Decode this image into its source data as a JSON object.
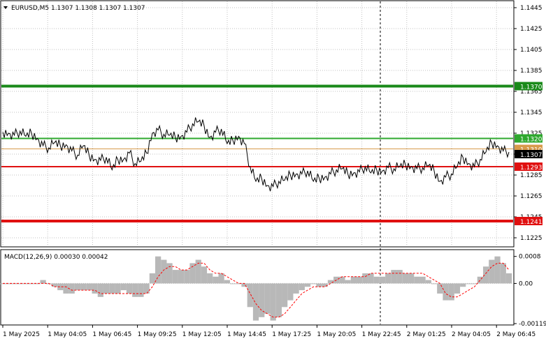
{
  "header": {
    "symbol_info": "EURUSD,M5  1.1307 1.1308 1.1307 1.1307"
  },
  "macd_header": {
    "label": "MACD(12,26,9) 0.00030 0.00042"
  },
  "colors": {
    "resistance_strong": "#1a8a1a",
    "resistance": "#2ea82e",
    "support": "#e01010",
    "current_line": "#d89a4a",
    "price_tag": "#000000",
    "histogram": "#b8b8b8",
    "signal": "#ff0000",
    "grid": "#c0c0c0",
    "frame": "#000000"
  },
  "chart_data": {
    "type": "line",
    "symbol": "EURUSD",
    "timeframe": "M5",
    "price_axis": {
      "ticks": [
        "1.1445",
        "1.1425",
        "1.1405",
        "1.1385",
        "1.1365",
        "1.1345",
        "1.1325",
        "1.1305",
        "1.1285",
        "1.1265",
        "1.1245",
        "1.1225"
      ],
      "range": [
        1.1217,
        1.1451
      ]
    },
    "time_axis": {
      "ticks": [
        "1 May 2025",
        "1 May 04:05",
        "1 May 06:45",
        "1 May 09:25",
        "1 May 12:05",
        "1 May 14:45",
        "1 May 17:25",
        "1 May 20:05",
        "1 May 22:45",
        "2 May 01:25",
        "2 May 04:05",
        "2 May 06:45"
      ]
    },
    "levels": [
      {
        "value": 1.137,
        "label": "1.1370",
        "role": "resistance_strong"
      },
      {
        "value": 1.132,
        "label": "1.1320",
        "role": "resistance"
      },
      {
        "value": 1.131,
        "label": "1.1310",
        "role": "current_line"
      },
      {
        "value": 1.1293,
        "label": "1.1293",
        "role": "support"
      },
      {
        "value": 1.1241,
        "label": "1.1241",
        "role": "support"
      }
    ],
    "current_price": {
      "value": 1.1307,
      "label": "1.1307"
    },
    "price_close": [
      1.1326,
      1.1325,
      1.1323,
      1.1327,
      1.1322,
      1.1325,
      1.132,
      1.1313,
      1.1311,
      1.1316,
      1.1313,
      1.1314,
      1.1308,
      1.1304,
      1.1313,
      1.1304,
      1.13,
      1.1299,
      1.1302,
      1.129,
      1.13,
      1.13,
      1.1306,
      1.1296,
      1.1298,
      1.1306,
      1.1325,
      1.1328,
      1.1324,
      1.1323,
      1.1321,
      1.1322,
      1.1326,
      1.1334,
      1.1336,
      1.1332,
      1.1321,
      1.1326,
      1.1329,
      1.1315,
      1.1318,
      1.1322,
      1.1315,
      1.1293,
      1.1279,
      1.1282,
      1.1275,
      1.1274,
      1.1279,
      1.128,
      1.1285,
      1.1286,
      1.1286,
      1.1289,
      1.1279,
      1.1282,
      1.1283,
      1.1286,
      1.129,
      1.1291,
      1.1286,
      1.1287,
      1.1288,
      1.1293,
      1.1287,
      1.129,
      1.1289,
      1.1292,
      1.1291,
      1.1293,
      1.1295,
      1.1293,
      1.1291,
      1.1292,
      1.1294,
      1.1289,
      1.1279,
      1.1283,
      1.1286,
      1.1293,
      1.1302,
      1.1296,
      1.1293,
      1.13,
      1.1307,
      1.1316,
      1.1313,
      1.1308,
      1.1307
    ],
    "macd_panel": {
      "name": "MACD(12,26,9)",
      "macd_value": 0.0003,
      "signal_value": 0.00042,
      "axis_ticks": [
        "0.0008",
        "0.00",
        "-0.00119"
      ],
      "range": [
        -0.00121,
        0.00098
      ],
      "histogram": [
        0.0,
        0.0,
        0.0,
        0.0,
        0.0,
        0.0,
        0.0,
        0.0001,
        0.0,
        -0.0001,
        -0.0002,
        -0.0003,
        -0.0003,
        -0.0002,
        -0.0002,
        -0.0002,
        -0.0003,
        -0.0004,
        -0.0003,
        -0.0003,
        -0.0003,
        -0.0002,
        -0.0003,
        -0.0004,
        -0.0004,
        -0.0003,
        0.0003,
        0.0008,
        0.0007,
        0.0006,
        0.0004,
        0.0004,
        0.0004,
        0.0006,
        0.0007,
        0.0005,
        0.0003,
        0.0002,
        0.0003,
        0.0001,
        0.0,
        0.0,
        -0.0001,
        -0.0007,
        -0.0011,
        -0.001,
        -0.0009,
        -0.0011,
        -0.001,
        -0.0007,
        -0.0005,
        -0.0003,
        -0.0002,
        -0.0001,
        0.0,
        -0.0001,
        -0.0001,
        0.0001,
        0.0002,
        0.0002,
        0.0001,
        0.0002,
        0.0002,
        0.0003,
        0.0003,
        0.0002,
        0.0002,
        0.0003,
        0.0004,
        0.0004,
        0.0003,
        0.0003,
        0.0002,
        0.0002,
        0.0001,
        0.0,
        -0.0003,
        -0.0005,
        -0.0005,
        -0.0003,
        -0.0001,
        0.0,
        0.0,
        0.0002,
        0.0005,
        0.0007,
        0.0008,
        0.0006,
        0.0003
      ],
      "signal": [
        0.0,
        0.0,
        0.0,
        0.0,
        0.0,
        0.0,
        0.0,
        0.0,
        0.0,
        -0.0001,
        -0.0001,
        -0.0001,
        -0.0002,
        -0.0002,
        -0.0002,
        -0.0002,
        -0.0002,
        -0.0003,
        -0.0003,
        -0.0003,
        -0.0003,
        -0.0003,
        -0.0003,
        -0.0003,
        -0.0003,
        -0.0003,
        -0.0001,
        0.0002,
        0.0004,
        0.0005,
        0.0005,
        0.0004,
        0.0004,
        0.0005,
        0.0006,
        0.0006,
        0.0004,
        0.0003,
        0.0003,
        0.0002,
        0.0001,
        0.0,
        0.0,
        -0.0003,
        -0.0006,
        -0.0008,
        -0.0009,
        -0.001,
        -0.001,
        -0.0009,
        -0.0007,
        -0.0005,
        -0.0003,
        -0.0002,
        -0.0001,
        -0.0001,
        -0.0001,
        0.0,
        0.0001,
        0.0002,
        0.0002,
        0.0002,
        0.0002,
        0.0002,
        0.0003,
        0.0003,
        0.0003,
        0.0003,
        0.0003,
        0.0003,
        0.0003,
        0.0003,
        0.0003,
        0.0003,
        0.0002,
        0.0001,
        0.0,
        -0.0003,
        -0.0004,
        -0.0004,
        -0.0003,
        -0.0002,
        -0.0001,
        0.0001,
        0.0003,
        0.0005,
        0.0006,
        0.0006,
        0.0004
      ]
    }
  }
}
